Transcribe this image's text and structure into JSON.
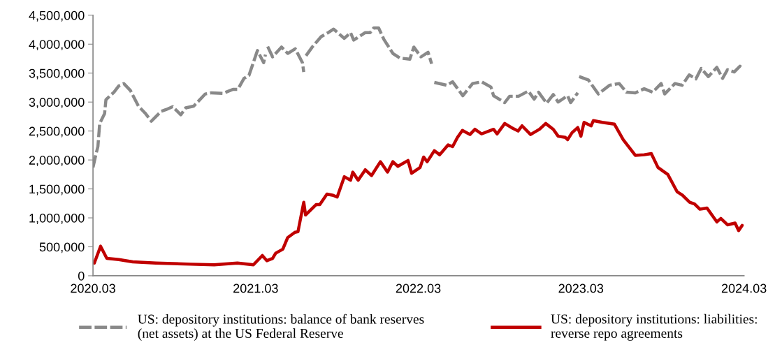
{
  "chart_data": {
    "type": "line",
    "xlim": [
      "2020-03-01",
      "2024-03-01"
    ],
    "xticks": [
      {
        "value": "2020-03-01",
        "label": "2020.03"
      },
      {
        "value": "2021-03-01",
        "label": "2021.03"
      },
      {
        "value": "2022-03-01",
        "label": "2022.03"
      },
      {
        "value": "2023-03-01",
        "label": "2023.03"
      },
      {
        "value": "2024-03-01",
        "label": "2024.03"
      }
    ],
    "ylim": [
      0,
      4500000
    ],
    "yticks": [
      {
        "value": 0,
        "label": "0"
      },
      {
        "value": 500000,
        "label": "500,000"
      },
      {
        "value": 1000000,
        "label": "1,000,000"
      },
      {
        "value": 1500000,
        "label": "1,500,000"
      },
      {
        "value": 2000000,
        "label": "2,000,000"
      },
      {
        "value": 2500000,
        "label": "2,500,000"
      },
      {
        "value": 3000000,
        "label": "3,000,000"
      },
      {
        "value": 3500000,
        "label": "3,500,000"
      },
      {
        "value": 4000000,
        "label": "4,000,000"
      },
      {
        "value": 4500000,
        "label": "4,500,000"
      }
    ],
    "grid": false,
    "legend": "bottom",
    "marker": "none",
    "series": [
      {
        "name": "US: depository institutions: balance of bank reserves (net assets) at the US Federal Reserve",
        "color": "#898989",
        "line_style": "dashed",
        "x": [
          "2020-03-01",
          "2020-03-08",
          "2020-03-12",
          "2020-03-16",
          "2020-03-27",
          "2020-03-30",
          "2020-04-07",
          "2020-04-17",
          "2020-04-28",
          "2020-05-09",
          "2020-05-24",
          "2020-06-11",
          "2020-06-26",
          "2020-07-10",
          "2020-08-01",
          "2020-08-12",
          "2020-08-27",
          "2020-09-14",
          "2020-09-25",
          "2020-10-13",
          "2020-11-08",
          "2020-11-22",
          "2020-12-18",
          "2021-01-09",
          "2021-01-20",
          "2021-02-03",
          "2021-02-14",
          "2021-03-05",
          "2021-03-19",
          "2021-03-23",
          "2021-03-25",
          "2021-03-28",
          "2021-04-08",
          "2021-04-28",
          "2021-05-12",
          "2021-05-29",
          "2021-06-14",
          "2021-06-17",
          "2021-06-19",
          "2021-06-22",
          "2021-07-06",
          "2021-07-26",
          "2021-08-11",
          "2021-08-23",
          "2021-09-16",
          "2021-09-30",
          "2021-10-07",
          "2021-11-02",
          "2021-11-13",
          "2021-11-21",
          "2021-12-02",
          "2021-12-14",
          "2022-01-03",
          "2022-01-19",
          "2022-02-10",
          "2022-02-19",
          "2022-03-07",
          "2022-03-23",
          "2022-03-31",
          "2022-04-03",
          "2022-04-06",
          "2022-05-04",
          "2022-05-17",
          "2022-06-09",
          "2022-07-01",
          "2022-07-21",
          "2022-08-11",
          "2022-08-17",
          "2022-09-11",
          "2022-09-22",
          "2022-10-12",
          "2022-11-03",
          "2022-11-16",
          "2022-11-26",
          "2022-12-14",
          "2022-12-29",
          "2023-01-09",
          "2023-01-30",
          "2023-02-06",
          "2023-02-22",
          "2023-02-23",
          "2023-02-25",
          "2023-03-18",
          "2023-04-09",
          "2023-05-04",
          "2023-05-26",
          "2023-06-11",
          "2023-07-01",
          "2023-07-21",
          "2023-08-09",
          "2023-08-28",
          "2023-09-05",
          "2023-09-28",
          "2023-10-14",
          "2023-10-30",
          "2023-11-14",
          "2023-11-26",
          "2023-12-12",
          "2023-12-31",
          "2024-01-13",
          "2024-01-24",
          "2024-02-08",
          "2024-02-21",
          "2024-02-26"
        ],
        "values": [
          1870000,
          2110000,
          2230000,
          2630000,
          2800000,
          3040000,
          3100000,
          3170000,
          3280000,
          3320000,
          3200000,
          2930000,
          2810000,
          2670000,
          2840000,
          2870000,
          2920000,
          2780000,
          2900000,
          2930000,
          3140000,
          3160000,
          3150000,
          3220000,
          3220000,
          3410000,
          3460000,
          3890000,
          3680000,
          3820000,
          null,
          3960000,
          3780000,
          3950000,
          3840000,
          3920000,
          3680000,
          3520000,
          null,
          3800000,
          3950000,
          4130000,
          4200000,
          4260000,
          4100000,
          4200000,
          4070000,
          4200000,
          4200000,
          4280000,
          4280000,
          4080000,
          3840000,
          3760000,
          3740000,
          3950000,
          3780000,
          3860000,
          3660000,
          null,
          3340000,
          3290000,
          3350000,
          3110000,
          3320000,
          3350000,
          3260000,
          3110000,
          2990000,
          3100000,
          3100000,
          3190000,
          3050000,
          3170000,
          2980000,
          3130000,
          3000000,
          3110000,
          2990000,
          3160000,
          null,
          3440000,
          3380000,
          3140000,
          3290000,
          3320000,
          3170000,
          3160000,
          3230000,
          3170000,
          3320000,
          3140000,
          3320000,
          3290000,
          3470000,
          3400000,
          3580000,
          3440000,
          3600000,
          3410000,
          3560000,
          3520000,
          3620000,
          3580000
        ]
      },
      {
        "name": "US: depository institutions: liabilities: reverse repo agreements",
        "color": "#c00000",
        "line_style": "solid",
        "x": [
          "2020-03-04",
          "2020-03-18",
          "2020-04-01",
          "2020-04-28",
          "2020-05-29",
          "2020-07-20",
          "2020-10-06",
          "2020-11-28",
          "2021-01-19",
          "2021-02-24",
          "2021-03-16",
          "2021-03-26",
          "2021-04-08",
          "2021-04-15",
          "2021-05-01",
          "2021-05-12",
          "2021-05-28",
          "2021-06-04",
          "2021-06-17",
          "2021-06-21",
          "2021-07-15",
          "2021-07-23",
          "2021-08-08",
          "2021-08-22",
          "2021-08-31",
          "2021-09-16",
          "2021-09-30",
          "2021-10-05",
          "2021-10-17",
          "2021-11-02",
          "2021-11-16",
          "2021-12-06",
          "2021-12-22",
          "2022-01-03",
          "2022-01-14",
          "2022-02-06",
          "2022-02-14",
          "2022-03-05",
          "2022-03-13",
          "2022-03-21",
          "2022-04-06",
          "2022-04-18",
          "2022-05-07",
          "2022-05-17",
          "2022-05-28",
          "2022-06-08",
          "2022-06-25",
          "2022-07-06",
          "2022-07-21",
          "2022-08-17",
          "2022-08-25",
          "2022-09-11",
          "2022-09-26",
          "2022-10-11",
          "2022-10-20",
          "2022-11-08",
          "2022-11-28",
          "2022-12-12",
          "2022-12-29",
          "2023-01-09",
          "2023-01-25",
          "2023-01-30",
          "2023-02-09",
          "2023-02-22",
          "2023-03-01",
          "2023-03-08",
          "2023-03-24",
          "2023-03-29",
          "2023-04-18",
          "2023-05-15",
          "2023-06-04",
          "2023-07-01",
          "2023-07-21",
          "2023-08-06",
          "2023-08-21",
          "2023-09-12",
          "2023-10-03",
          "2023-10-15",
          "2023-10-31",
          "2023-11-11",
          "2023-11-23",
          "2023-12-09",
          "2023-12-31",
          "2024-01-09",
          "2024-01-24",
          "2024-02-10",
          "2024-02-18",
          "2024-02-26"
        ],
        "values": [
          220000,
          510000,
          300000,
          280000,
          240000,
          220000,
          200000,
          190000,
          220000,
          190000,
          350000,
          260000,
          300000,
          390000,
          460000,
          660000,
          750000,
          760000,
          1270000,
          1050000,
          1230000,
          1230000,
          1410000,
          1390000,
          1360000,
          1710000,
          1650000,
          1790000,
          1650000,
          1830000,
          1730000,
          1970000,
          1790000,
          1970000,
          1890000,
          1990000,
          1770000,
          1870000,
          2050000,
          1970000,
          2160000,
          2090000,
          2260000,
          2230000,
          2390000,
          2510000,
          2440000,
          2530000,
          2450000,
          2530000,
          2450000,
          2630000,
          2560000,
          2500000,
          2590000,
          2440000,
          2530000,
          2630000,
          2530000,
          2410000,
          2390000,
          2350000,
          2470000,
          2560000,
          2410000,
          2650000,
          2590000,
          2680000,
          2650000,
          2620000,
          2350000,
          2080000,
          2090000,
          2110000,
          1870000,
          1750000,
          1450000,
          1390000,
          1270000,
          1240000,
          1150000,
          1170000,
          930000,
          990000,
          880000,
          910000,
          780000,
          870000
        ]
      }
    ]
  }
}
